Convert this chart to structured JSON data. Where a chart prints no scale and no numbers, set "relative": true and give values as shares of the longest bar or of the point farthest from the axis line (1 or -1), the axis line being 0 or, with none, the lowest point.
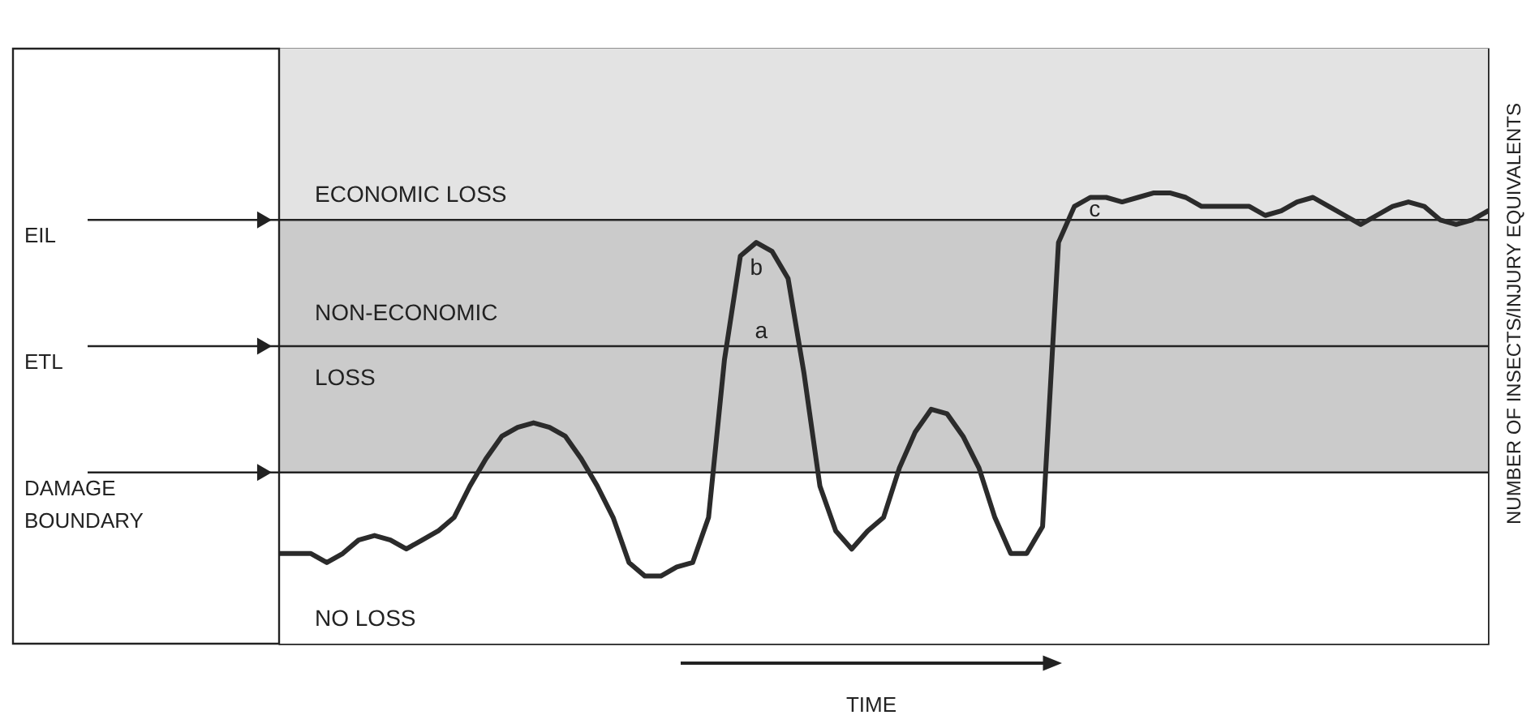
{
  "chart_data": {
    "type": "line",
    "relative": true,
    "xlabel": "TIME",
    "ylabel": "NUMBER OF INSECTS/INJURY EQUIVALENTS",
    "color": "#2b2b2b",
    "line_style": "solid",
    "categories": [
      null,
      null,
      null,
      null,
      null,
      null,
      null,
      null,
      null,
      null,
      null,
      null,
      null,
      null,
      null,
      null,
      null,
      null,
      null,
      null,
      null,
      null,
      null,
      null,
      null,
      null,
      null,
      null,
      null,
      null,
      null,
      null,
      null,
      null,
      null,
      null,
      null,
      null,
      null,
      null,
      null,
      null,
      null,
      null,
      null,
      null,
      null,
      null,
      null,
      null,
      null,
      null,
      null,
      null,
      null,
      null,
      null,
      null,
      null,
      null,
      null,
      null,
      null,
      null,
      null,
      null,
      null,
      null,
      null,
      null,
      null,
      null,
      null,
      null,
      null,
      null,
      null
    ],
    "values": [
      0.2,
      0.2,
      0.2,
      0.18,
      0.2,
      0.23,
      0.24,
      0.23,
      0.21,
      0.23,
      0.25,
      0.28,
      0.35,
      0.41,
      0.46,
      0.48,
      0.49,
      0.48,
      0.46,
      0.41,
      0.35,
      0.28,
      0.18,
      0.15,
      0.15,
      0.17,
      0.18,
      0.28,
      0.63,
      0.86,
      0.89,
      0.87,
      0.81,
      0.6,
      0.35,
      0.25,
      0.21,
      0.25,
      0.28,
      0.39,
      0.47,
      0.52,
      0.51,
      0.46,
      0.39,
      0.28,
      0.2,
      0.2,
      0.26,
      0.89,
      0.97,
      0.99,
      0.99,
      0.98,
      0.99,
      1,
      1,
      0.99,
      0.97,
      0.97,
      0.97,
      0.97,
      0.95,
      0.96,
      0.98,
      0.99,
      0.97,
      0.95,
      0.93,
      0.95,
      0.97,
      0.98,
      0.97,
      0.94,
      0.93,
      0.94,
      0.96
    ],
    "ref_lines": [
      {
        "axis": "y",
        "value": 0.94,
        "label": "EIL"
      },
      {
        "axis": "y",
        "value": 0.66,
        "label": "ETL"
      },
      {
        "axis": "y",
        "value": 0.38,
        "label": "DAMAGE\nBOUNDARY"
      }
    ],
    "bands": [
      {
        "axis": "y",
        "from": 0.94,
        "to": 1.32,
        "label": "ECONOMIC LOSS",
        "color": "#e3e3e3"
      },
      {
        "axis": "y",
        "from": 0.38,
        "to": 0.94,
        "label": "NON-ECONOMIC\nLOSS",
        "color": "#cbcbcb"
      },
      {
        "axis": "y",
        "from": 0,
        "to": 0.38,
        "label": "NO LOSS",
        "color": "#ffffff"
      }
    ],
    "annotations": [
      {
        "text": "a",
        "y": 0.66
      },
      "b",
      {
        "text": "c",
        "y": 0.93
      }
    ]
  }
}
